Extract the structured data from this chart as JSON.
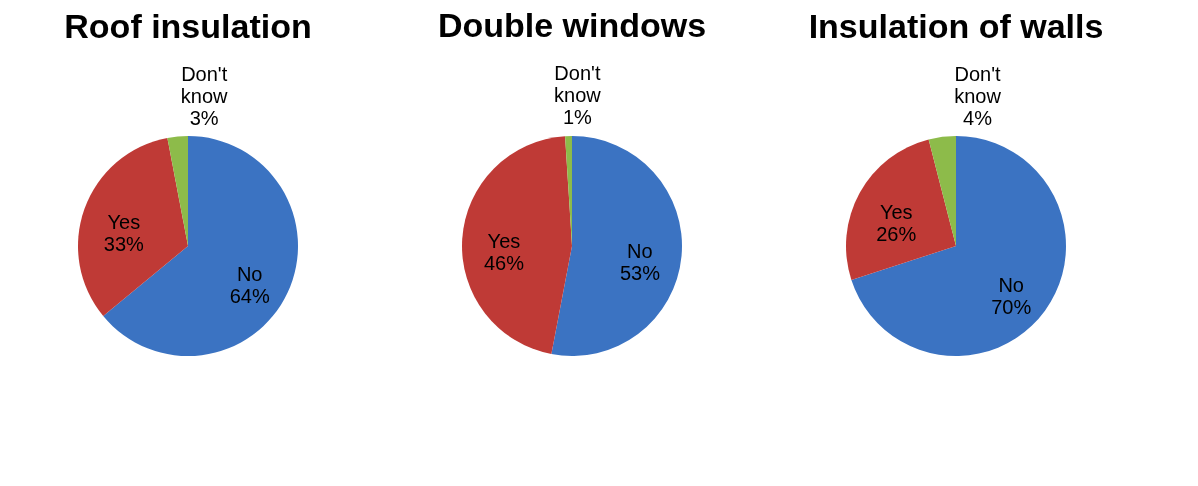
{
  "chart_data": [
    {
      "type": "pie",
      "title": "Roof insulation",
      "categories": [
        "No",
        "Yes",
        "Don't know"
      ],
      "values": [
        64,
        33,
        3
      ],
      "value_labels": [
        "64%",
        "33%",
        "3%"
      ],
      "colors": [
        "#3b73c2",
        "#bf3a36",
        "#8dbb4a"
      ]
    },
    {
      "type": "pie",
      "title": "Double windows",
      "categories": [
        "No",
        "Yes",
        "Don't know"
      ],
      "values": [
        53,
        46,
        1
      ],
      "value_labels": [
        "53%",
        "46%",
        "1%"
      ],
      "colors": [
        "#3b73c2",
        "#bf3a36",
        "#8dbb4a"
      ]
    },
    {
      "type": "pie",
      "title": "Insulation of walls",
      "categories": [
        "No",
        "Yes",
        "Don't know"
      ],
      "values": [
        70,
        26,
        4
      ],
      "value_labels": [
        "70%",
        "26%",
        "4%"
      ],
      "colors": [
        "#3b73c2",
        "#bf3a36",
        "#8dbb4a"
      ]
    }
  ]
}
